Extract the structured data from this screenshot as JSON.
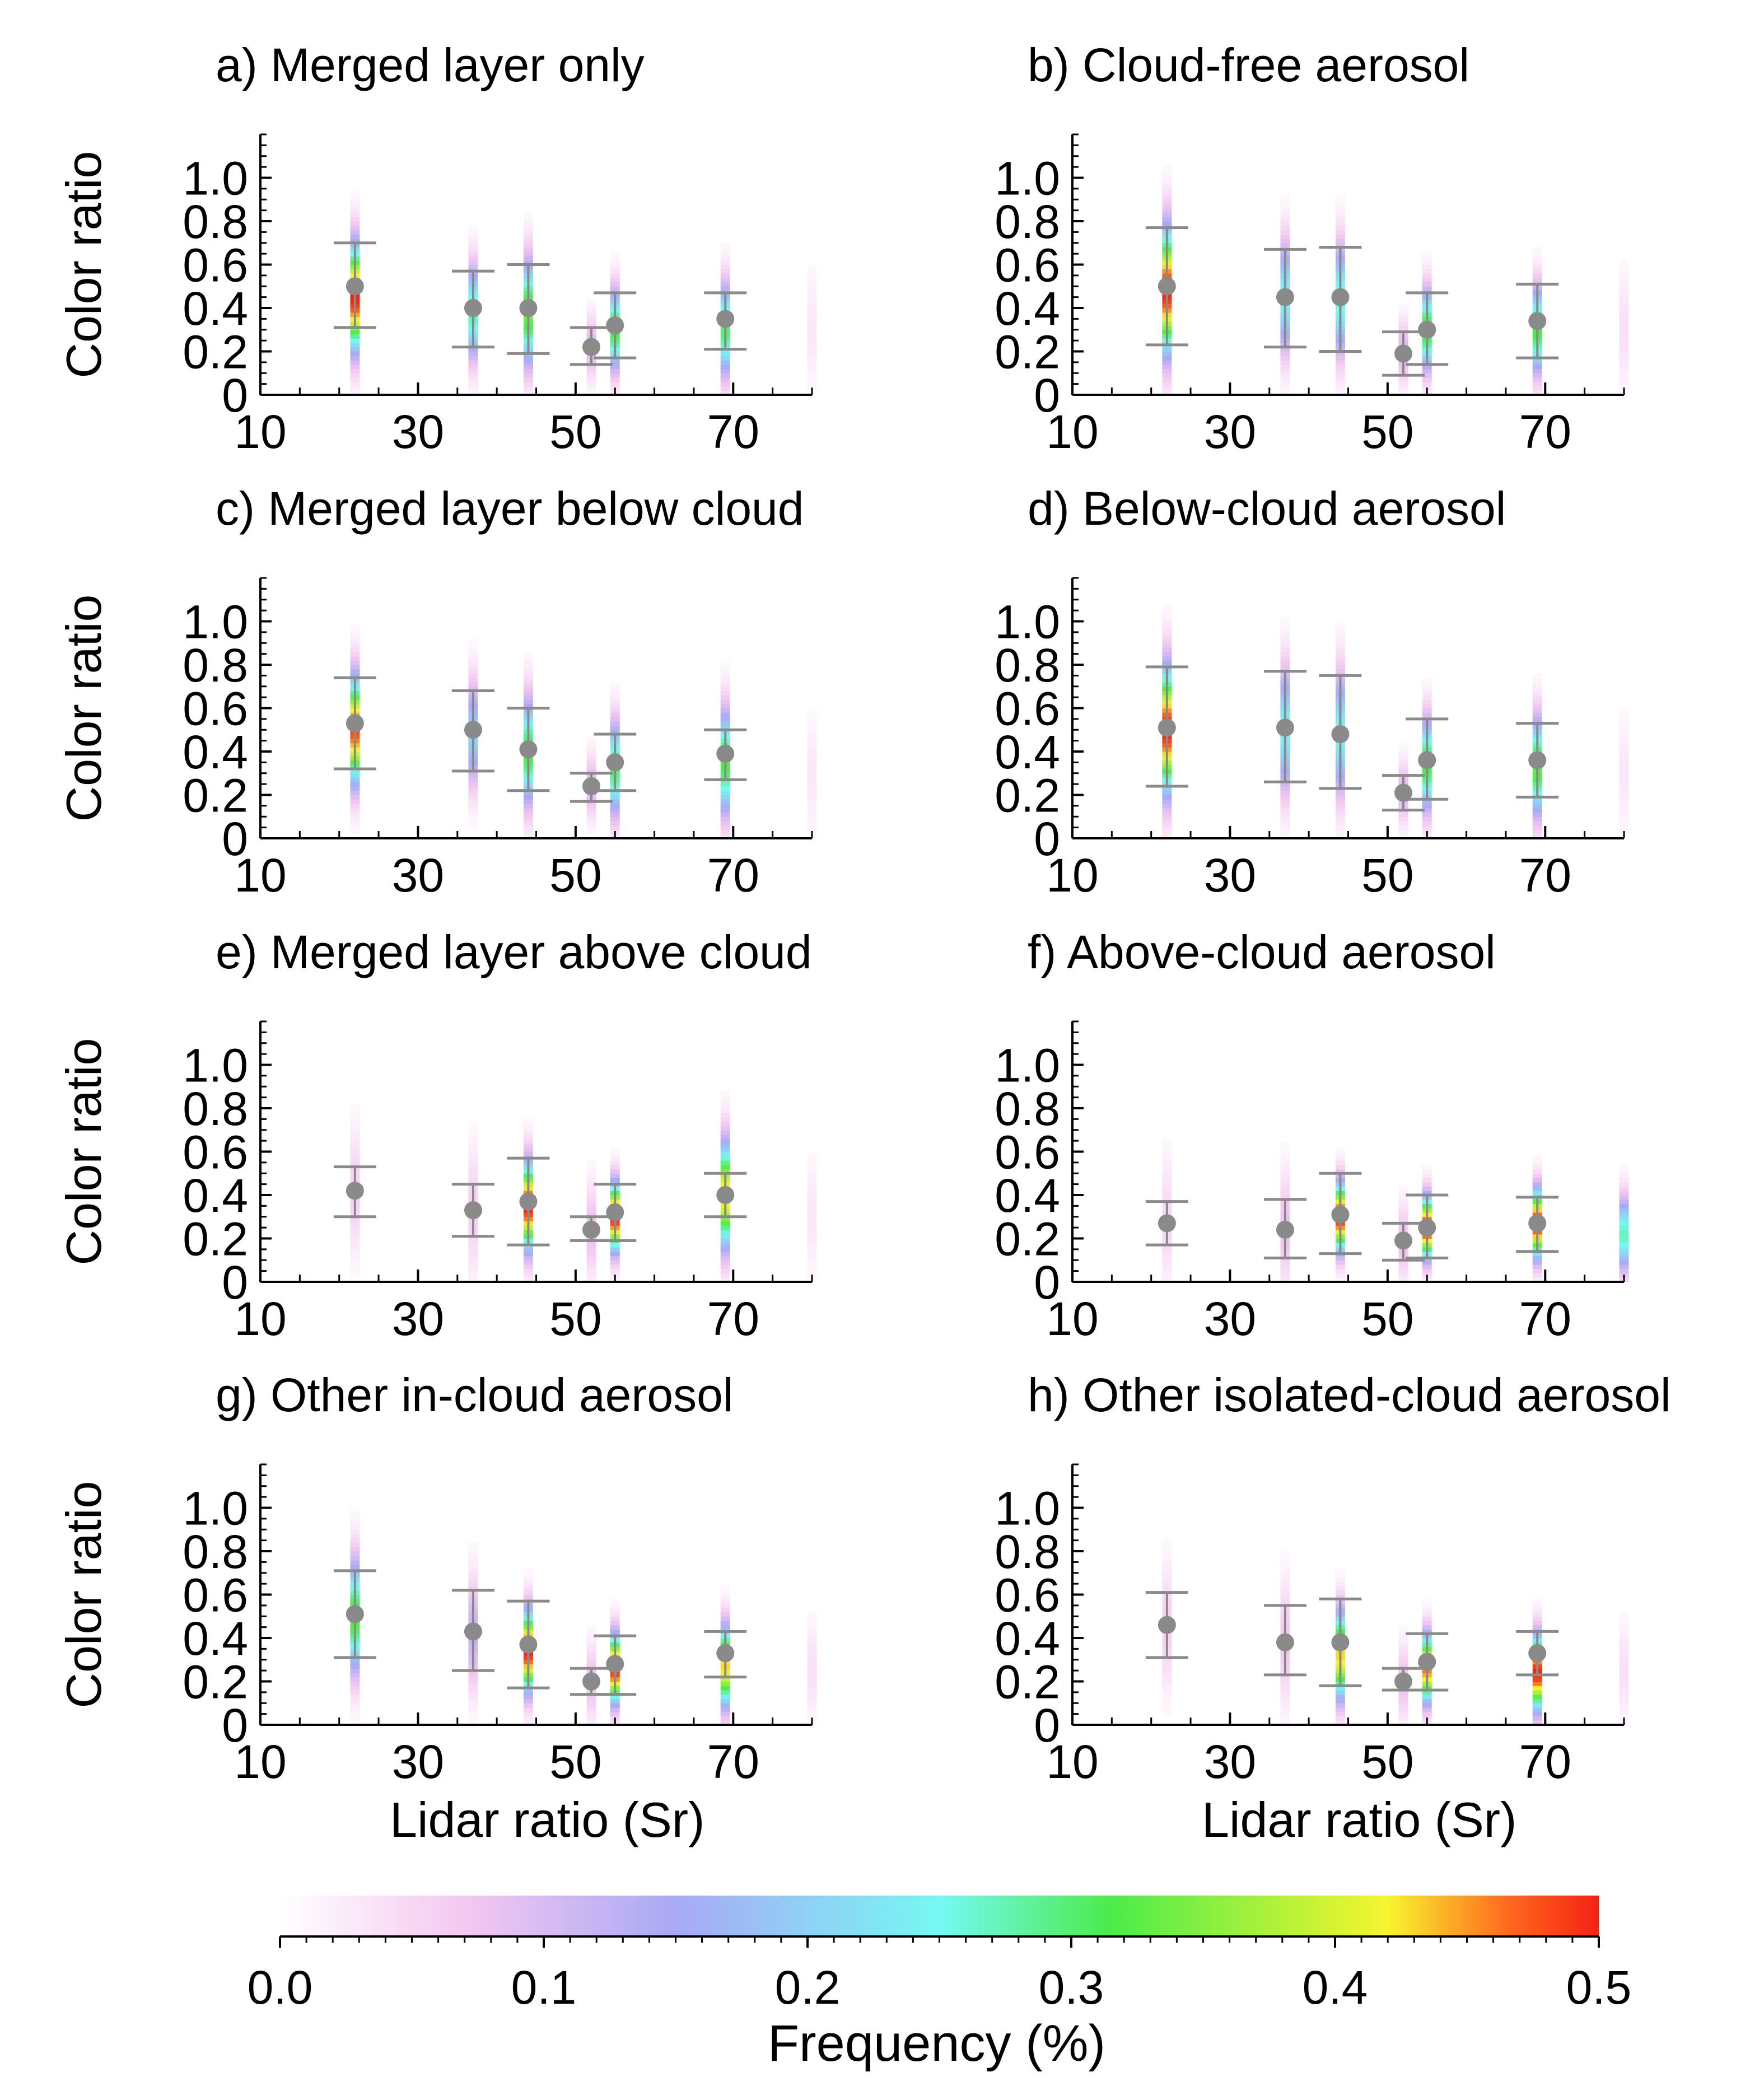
{
  "chart_data": {
    "type": "heatmap",
    "panels": [
      {
        "title": "a) Merged layer only",
        "ylabel": "Color ratio",
        "xlabel": "",
        "columns": [
          {
            "lidar_ratio": 22,
            "dist": {
              "center": 0.45,
              "spread": 0.17,
              "peak": 0.5
            },
            "mean": 0.5,
            "lower": 0.31,
            "upper": 0.7
          },
          {
            "lidar_ratio": 37,
            "dist": {
              "center": 0.38,
              "spread": 0.15,
              "peak": 0.28
            },
            "mean": 0.4,
            "lower": 0.22,
            "upper": 0.57
          },
          {
            "lidar_ratio": 44,
            "dist": {
              "center": 0.38,
              "spread": 0.17,
              "peak": 0.34
            },
            "mean": 0.4,
            "lower": 0.19,
            "upper": 0.6
          },
          {
            "lidar_ratio": 52,
            "dist": {
              "center": 0.22,
              "spread": 0.1,
              "peak": 0.1
            },
            "mean": 0.22,
            "lower": 0.14,
            "upper": 0.31
          },
          {
            "lidar_ratio": 55,
            "dist": {
              "center": 0.3,
              "spread": 0.13,
              "peak": 0.32
            },
            "mean": 0.32,
            "lower": 0.17,
            "upper": 0.47
          },
          {
            "lidar_ratio": 69,
            "dist": {
              "center": 0.3,
              "spread": 0.15,
              "peak": 0.3
            },
            "mean": 0.35,
            "lower": 0.21,
            "upper": 0.47
          },
          {
            "lidar_ratio": 80,
            "dist": {
              "center": 0.3,
              "spread": 0.18,
              "peak": 0.03
            }
          }
        ]
      },
      {
        "title": "b) Cloud-free aerosol",
        "ylabel": "",
        "xlabel": "",
        "columns": [
          {
            "lidar_ratio": 22,
            "dist": {
              "center": 0.48,
              "spread": 0.2,
              "peak": 0.5
            },
            "mean": 0.5,
            "lower": 0.23,
            "upper": 0.77
          },
          {
            "lidar_ratio": 37,
            "dist": {
              "center": 0.45,
              "spread": 0.18,
              "peak": 0.24
            },
            "mean": 0.45,
            "lower": 0.22,
            "upper": 0.67
          },
          {
            "lidar_ratio": 44,
            "dist": {
              "center": 0.44,
              "spread": 0.18,
              "peak": 0.26
            },
            "mean": 0.45,
            "lower": 0.2,
            "upper": 0.68
          },
          {
            "lidar_ratio": 52,
            "dist": {
              "center": 0.2,
              "spread": 0.1,
              "peak": 0.1
            },
            "mean": 0.19,
            "lower": 0.09,
            "upper": 0.29
          },
          {
            "lidar_ratio": 55,
            "dist": {
              "center": 0.3,
              "spread": 0.13,
              "peak": 0.33
            },
            "mean": 0.3,
            "lower": 0.14,
            "upper": 0.47
          },
          {
            "lidar_ratio": 69,
            "dist": {
              "center": 0.3,
              "spread": 0.14,
              "peak": 0.32
            },
            "mean": 0.34,
            "lower": 0.17,
            "upper": 0.51
          },
          {
            "lidar_ratio": 80,
            "dist": {
              "center": 0.3,
              "spread": 0.18,
              "peak": 0.04
            }
          }
        ]
      },
      {
        "title": "c) Merged layer below cloud",
        "ylabel": "Color ratio",
        "xlabel": "",
        "columns": [
          {
            "lidar_ratio": 22,
            "dist": {
              "center": 0.5,
              "spread": 0.17,
              "peak": 0.48
            },
            "mean": 0.53,
            "lower": 0.32,
            "upper": 0.74
          },
          {
            "lidar_ratio": 37,
            "dist": {
              "center": 0.48,
              "spread": 0.17,
              "peak": 0.2
            },
            "mean": 0.5,
            "lower": 0.31,
            "upper": 0.68
          },
          {
            "lidar_ratio": 44,
            "dist": {
              "center": 0.4,
              "spread": 0.17,
              "peak": 0.32
            },
            "mean": 0.41,
            "lower": 0.22,
            "upper": 0.6
          },
          {
            "lidar_ratio": 52,
            "dist": {
              "center": 0.24,
              "spread": 0.1,
              "peak": 0.1
            },
            "mean": 0.24,
            "lower": 0.17,
            "upper": 0.3
          },
          {
            "lidar_ratio": 55,
            "dist": {
              "center": 0.32,
              "spread": 0.15,
              "peak": 0.3
            },
            "mean": 0.35,
            "lower": 0.22,
            "upper": 0.48
          },
          {
            "lidar_ratio": 69,
            "dist": {
              "center": 0.35,
              "spread": 0.17,
              "peak": 0.32
            },
            "mean": 0.39,
            "lower": 0.27,
            "upper": 0.5
          },
          {
            "lidar_ratio": 80,
            "dist": {
              "center": 0.3,
              "spread": 0.18,
              "peak": 0.03
            }
          }
        ]
      },
      {
        "title": "d) Below-cloud aerosol",
        "ylabel": "",
        "xlabel": "",
        "columns": [
          {
            "lidar_ratio": 22,
            "dist": {
              "center": 0.5,
              "spread": 0.2,
              "peak": 0.5
            },
            "mean": 0.51,
            "lower": 0.24,
            "upper": 0.79
          },
          {
            "lidar_ratio": 37,
            "dist": {
              "center": 0.5,
              "spread": 0.2,
              "peak": 0.24
            },
            "mean": 0.51,
            "lower": 0.26,
            "upper": 0.77
          },
          {
            "lidar_ratio": 44,
            "dist": {
              "center": 0.48,
              "spread": 0.2,
              "peak": 0.24
            },
            "mean": 0.48,
            "lower": 0.23,
            "upper": 0.75
          },
          {
            "lidar_ratio": 52,
            "dist": {
              "center": 0.21,
              "spread": 0.1,
              "peak": 0.1
            },
            "mean": 0.21,
            "lower": 0.13,
            "upper": 0.29
          },
          {
            "lidar_ratio": 55,
            "dist": {
              "center": 0.34,
              "spread": 0.15,
              "peak": 0.32
            },
            "mean": 0.36,
            "lower": 0.18,
            "upper": 0.55
          },
          {
            "lidar_ratio": 69,
            "dist": {
              "center": 0.33,
              "spread": 0.16,
              "peak": 0.33
            },
            "mean": 0.36,
            "lower": 0.19,
            "upper": 0.53
          },
          {
            "lidar_ratio": 80,
            "dist": {
              "center": 0.3,
              "spread": 0.18,
              "peak": 0.03
            }
          }
        ]
      },
      {
        "title": "e) Merged layer above cloud",
        "ylabel": "Color ratio",
        "xlabel": "",
        "columns": [
          {
            "lidar_ratio": 22,
            "dist": {
              "center": 0.42,
              "spread": 0.2,
              "peak": 0.06
            },
            "mean": 0.42,
            "lower": 0.3,
            "upper": 0.53
          },
          {
            "lidar_ratio": 37,
            "dist": {
              "center": 0.33,
              "spread": 0.2,
              "peak": 0.06
            },
            "mean": 0.33,
            "lower": 0.21,
            "upper": 0.45
          },
          {
            "lidar_ratio": 44,
            "dist": {
              "center": 0.35,
              "spread": 0.14,
              "peak": 0.5
            },
            "mean": 0.37,
            "lower": 0.17,
            "upper": 0.57
          },
          {
            "lidar_ratio": 52,
            "dist": {
              "center": 0.24,
              "spread": 0.15,
              "peak": 0.08
            },
            "mean": 0.24,
            "lower": 0.19,
            "upper": 0.3
          },
          {
            "lidar_ratio": 55,
            "dist": {
              "center": 0.3,
              "spread": 0.11,
              "peak": 0.5
            },
            "mean": 0.32,
            "lower": 0.19,
            "upper": 0.45
          },
          {
            "lidar_ratio": 69,
            "dist": {
              "center": 0.4,
              "spread": 0.17,
              "peak": 0.43
            },
            "mean": 0.4,
            "lower": 0.3,
            "upper": 0.5
          },
          {
            "lidar_ratio": 80,
            "dist": {
              "center": 0.3,
              "spread": 0.18,
              "peak": 0.03
            }
          }
        ]
      },
      {
        "title": "f) Above-cloud aerosol",
        "ylabel": "",
        "xlabel": "",
        "columns": [
          {
            "lidar_ratio": 22,
            "dist": {
              "center": 0.28,
              "spread": 0.2,
              "peak": 0.05
            },
            "mean": 0.27,
            "lower": 0.17,
            "upper": 0.37
          },
          {
            "lidar_ratio": 37,
            "dist": {
              "center": 0.25,
              "spread": 0.18,
              "peak": 0.08
            },
            "mean": 0.24,
            "lower": 0.11,
            "upper": 0.38
          },
          {
            "lidar_ratio": 44,
            "dist": {
              "center": 0.3,
              "spread": 0.11,
              "peak": 0.5
            },
            "mean": 0.31,
            "lower": 0.13,
            "upper": 0.5
          },
          {
            "lidar_ratio": 52,
            "dist": {
              "center": 0.19,
              "spread": 0.12,
              "peak": 0.08
            },
            "mean": 0.19,
            "lower": 0.1,
            "upper": 0.27
          },
          {
            "lidar_ratio": 55,
            "dist": {
              "center": 0.25,
              "spread": 0.1,
              "peak": 0.5
            },
            "mean": 0.25,
            "lower": 0.11,
            "upper": 0.4
          },
          {
            "lidar_ratio": 69,
            "dist": {
              "center": 0.27,
              "spread": 0.11,
              "peak": 0.5
            },
            "mean": 0.27,
            "lower": 0.14,
            "upper": 0.39
          },
          {
            "lidar_ratio": 80,
            "dist": {
              "center": 0.22,
              "spread": 0.12,
              "peak": 0.27
            }
          }
        ]
      },
      {
        "title": "g) Other in-cloud aerosol",
        "ylabel": "Color ratio",
        "xlabel": "Lidar ratio (Sr)",
        "columns": [
          {
            "lidar_ratio": 22,
            "dist": {
              "center": 0.5,
              "spread": 0.18,
              "peak": 0.33
            },
            "mean": 0.51,
            "lower": 0.31,
            "upper": 0.71
          },
          {
            "lidar_ratio": 37,
            "dist": {
              "center": 0.42,
              "spread": 0.18,
              "peak": 0.12
            },
            "mean": 0.43,
            "lower": 0.25,
            "upper": 0.62
          },
          {
            "lidar_ratio": 44,
            "dist": {
              "center": 0.34,
              "spread": 0.13,
              "peak": 0.5
            },
            "mean": 0.37,
            "lower": 0.17,
            "upper": 0.57
          },
          {
            "lidar_ratio": 52,
            "dist": {
              "center": 0.2,
              "spread": 0.12,
              "peak": 0.08
            },
            "mean": 0.2,
            "lower": 0.14,
            "upper": 0.26
          },
          {
            "lidar_ratio": 55,
            "dist": {
              "center": 0.26,
              "spread": 0.11,
              "peak": 0.5
            },
            "mean": 0.28,
            "lower": 0.14,
            "upper": 0.41
          },
          {
            "lidar_ratio": 69,
            "dist": {
              "center": 0.27,
              "spread": 0.13,
              "peak": 0.43
            },
            "mean": 0.33,
            "lower": 0.22,
            "upper": 0.43
          },
          {
            "lidar_ratio": 80,
            "dist": {
              "center": 0.25,
              "spread": 0.15,
              "peak": 0.04
            }
          }
        ]
      },
      {
        "title": "h) Other isolated-cloud aerosol",
        "ylabel": "",
        "xlabel": "Lidar ratio (Sr)",
        "columns": [
          {
            "lidar_ratio": 22,
            "dist": {
              "center": 0.45,
              "spread": 0.2,
              "peak": 0.06
            },
            "mean": 0.46,
            "lower": 0.31,
            "upper": 0.61
          },
          {
            "lidar_ratio": 37,
            "dist": {
              "center": 0.38,
              "spread": 0.2,
              "peak": 0.07
            },
            "mean": 0.38,
            "lower": 0.23,
            "upper": 0.55
          },
          {
            "lidar_ratio": 44,
            "dist": {
              "center": 0.32,
              "spread": 0.14,
              "peak": 0.43
            },
            "mean": 0.38,
            "lower": 0.18,
            "upper": 0.58
          },
          {
            "lidar_ratio": 52,
            "dist": {
              "center": 0.2,
              "spread": 0.12,
              "peak": 0.08
            },
            "mean": 0.2,
            "lower": 0.16,
            "upper": 0.26
          },
          {
            "lidar_ratio": 55,
            "dist": {
              "center": 0.26,
              "spread": 0.11,
              "peak": 0.46
            },
            "mean": 0.29,
            "lower": 0.16,
            "upper": 0.42
          },
          {
            "lidar_ratio": 69,
            "dist": {
              "center": 0.24,
              "spread": 0.12,
              "peak": 0.5
            },
            "mean": 0.33,
            "lower": 0.23,
            "upper": 0.43
          },
          {
            "lidar_ratio": 80,
            "dist": {
              "center": 0.25,
              "spread": 0.15,
              "peak": 0.04
            }
          }
        ]
      }
    ],
    "x_axis": {
      "range": [
        10,
        80
      ],
      "ticks": [
        10,
        30,
        50,
        70
      ],
      "tick_labels": [
        "10",
        "30",
        "50",
        "70"
      ]
    },
    "y_axis": {
      "range": [
        0,
        1.2
      ],
      "ticks": [
        0,
        0.2,
        0.4,
        0.6,
        0.8,
        1.0
      ],
      "tick_labels": [
        "0",
        "0.2",
        "0.4",
        "0.6",
        "0.8",
        "1.0"
      ]
    },
    "colorbar": {
      "label": "Frequency (%)",
      "range": [
        0,
        0.5
      ],
      "ticks": [
        0,
        0.1,
        0.2,
        0.3,
        0.4,
        0.5
      ],
      "tick_labels": [
        "0.0",
        "0.1",
        "0.2",
        "0.3",
        "0.4",
        "0.5"
      ],
      "colors": [
        "#ffffff",
        "#f4c8f0",
        "#a9a9f5",
        "#76f8f3",
        "#4bec4b",
        "#f7f52e",
        "#ff6a1e",
        "#f42213"
      ]
    },
    "mean_marker_color": "#8a8a8a",
    "errorbar_color": "#8a8a8a",
    "grid": false
  }
}
